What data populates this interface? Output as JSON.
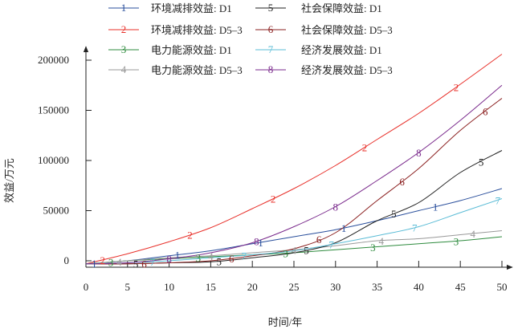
{
  "chart_data": {
    "type": "line",
    "title": "",
    "xlabel": "时间/年",
    "ylabel": "效益/万元",
    "xlim": [
      0,
      50
    ],
    "ylim": [
      -5000,
      210000
    ],
    "x_ticks": [
      0,
      5,
      10,
      15,
      20,
      25,
      30,
      35,
      40,
      45,
      50
    ],
    "y_ticks": [
      0,
      50000,
      100000,
      150000,
      200000
    ],
    "grid": false,
    "legend_position": "top",
    "x": [
      0,
      5,
      10,
      15,
      20,
      25,
      30,
      35,
      40,
      45,
      50
    ],
    "series": [
      {
        "marker": "1",
        "name": "环境减排效益: D1",
        "color": "#2a4f9c",
        "values": [
          -3000,
          0,
          5000,
          10000,
          17000,
          24000,
          31000,
          40000,
          50000,
          60000,
          72000
        ],
        "marker_x": [
          1,
          11,
          21,
          31,
          42
        ]
      },
      {
        "marker": "2",
        "name": "环境减排效益: D5–3",
        "color": "#e8302a",
        "values": [
          -3000,
          7000,
          19000,
          33000,
          52000,
          72000,
          95000,
          121000,
          147000,
          176000,
          206000
        ],
        "marker_x": [
          2,
          12.5,
          22.5,
          33.5,
          44.5
        ]
      },
      {
        "marker": "3",
        "name": "电力能源效益: D1",
        "color": "#2e8b3e",
        "values": [
          -3000,
          0,
          2000,
          4000,
          6000,
          8000,
          11000,
          14000,
          17000,
          20000,
          24000
        ],
        "marker_x": [
          3,
          13.5,
          24,
          34.5,
          44.5
        ]
      },
      {
        "marker": "4",
        "name": "电力能源效益: D5–3",
        "color": "#999999",
        "values": [
          -3000,
          0,
          3000,
          5000,
          8000,
          11000,
          15000,
          20000,
          22000,
          26000,
          30000
        ],
        "marker_x": [
          4,
          15,
          25,
          35.5,
          46.5
        ]
      },
      {
        "marker": "5",
        "name": "社会保障效益: D1",
        "color": "#222222",
        "values": [
          -3000,
          -3000,
          -2000,
          -1000,
          3000,
          8000,
          18000,
          40000,
          58000,
          88000,
          110000
        ],
        "marker_x": [
          6,
          16,
          26.5,
          37,
          47.5
        ]
      },
      {
        "marker": "6",
        "name": "社会保障效益: D5–3",
        "color": "#8b2020",
        "values": [
          -3000,
          -3000,
          -2000,
          0,
          5000,
          12000,
          28000,
          60000,
          92000,
          130000,
          162000
        ],
        "marker_x": [
          7,
          17.5,
          28,
          38,
          48
        ]
      },
      {
        "marker": "7",
        "name": "经济发展效益: D1",
        "color": "#5bbcd6",
        "values": [
          -3000,
          -2000,
          0,
          3000,
          6000,
          10000,
          17000,
          25000,
          34000,
          48000,
          62000
        ],
        "marker_x": [
          8,
          19,
          29.5,
          39.5,
          49.5
        ]
      },
      {
        "marker": "8",
        "name": "经济发展效益: D5–3",
        "color": "#7a2a8c",
        "values": [
          -3000,
          -2000,
          2000,
          8000,
          18000,
          34000,
          54000,
          80000,
          108000,
          140000,
          175000
        ],
        "marker_x": [
          10,
          20.5,
          30,
          40
        ]
      }
    ]
  }
}
